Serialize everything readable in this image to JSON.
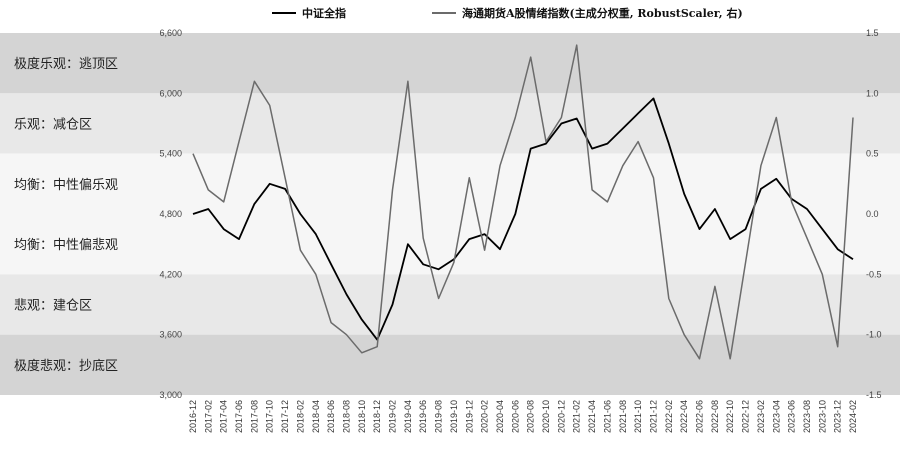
{
  "chart_data": {
    "type": "line",
    "title": "",
    "legend": {
      "placement": "top-center",
      "entries": [
        {
          "name": "中证全指",
          "color": "#000000"
        },
        {
          "name": "海通期货A股情绪指数(主成分权重, RobustScaler, 右)",
          "color": "#6b6b6b"
        }
      ]
    },
    "y_left": {
      "min": 3000,
      "max": 6600,
      "ticks": [
        "3,000",
        "3,600",
        "4,200",
        "4,800",
        "5,400",
        "6,000",
        "6,600"
      ]
    },
    "y_right": {
      "min": -1.5,
      "max": 1.5,
      "ticks": [
        "-1.5",
        "-1.0",
        "-0.5",
        "0.0",
        "0.5",
        "1.0",
        "1.5"
      ]
    },
    "x_ticks": [
      "2016-12",
      "2017-02",
      "2017-04",
      "2017-06",
      "2017-08",
      "2017-10",
      "2017-12",
      "2018-02",
      "2018-04",
      "2018-06",
      "2018-08",
      "2018-10",
      "2018-12",
      "2019-02",
      "2019-04",
      "2019-06",
      "2019-08",
      "2019-10",
      "2019-12",
      "2020-02",
      "2020-04",
      "2020-06",
      "2020-08",
      "2020-10",
      "2020-12",
      "2021-02",
      "2021-04",
      "2021-06",
      "2021-08",
      "2021-10",
      "2021-12",
      "2022-02",
      "2022-04",
      "2022-06",
      "2022-08",
      "2022-10",
      "2022-12",
      "2023-02",
      "2023-04",
      "2023-06",
      "2023-08",
      "2023-10",
      "2023-12",
      "2024-02"
    ],
    "bands": [
      {
        "label": "极度乐观：逃顶区",
        "from": 1.0,
        "to": 1.5,
        "color": "#d4d4d4"
      },
      {
        "label": "乐观：减仓区",
        "from": 0.5,
        "to": 1.0,
        "color": "#e8e8e8"
      },
      {
        "label": "均衡：中性偏乐观",
        "from": 0.0,
        "to": 0.5,
        "color": "#f6f6f6"
      },
      {
        "label": "均衡：中性偏悲观",
        "from": -0.5,
        "to": 0.0,
        "color": "#f6f6f6"
      },
      {
        "label": "悲观：建仓区",
        "from": -1.0,
        "to": -0.5,
        "color": "#e8e8e8"
      },
      {
        "label": "极度悲观：抄底区",
        "from": -1.5,
        "to": -1.0,
        "color": "#d4d4d4"
      }
    ],
    "series": [
      {
        "name": "中证全指",
        "axis": "left",
        "x": [
          "2016-12",
          "2017-02",
          "2017-04",
          "2017-06",
          "2017-08",
          "2017-10",
          "2017-12",
          "2018-02",
          "2018-04",
          "2018-06",
          "2018-08",
          "2018-10",
          "2018-12",
          "2019-02",
          "2019-04",
          "2019-06",
          "2019-08",
          "2019-10",
          "2019-12",
          "2020-02",
          "2020-04",
          "2020-06",
          "2020-08",
          "2020-10",
          "2020-12",
          "2021-02",
          "2021-04",
          "2021-06",
          "2021-08",
          "2021-10",
          "2021-12",
          "2022-02",
          "2022-04",
          "2022-06",
          "2022-08",
          "2022-10",
          "2022-12",
          "2023-02",
          "2023-04",
          "2023-06",
          "2023-08",
          "2023-10",
          "2023-12",
          "2024-02"
        ],
        "values": [
          4800,
          4850,
          4650,
          4550,
          4900,
          5100,
          5050,
          4800,
          4600,
          4300,
          4000,
          3750,
          3550,
          3900,
          4500,
          4300,
          4250,
          4350,
          4550,
          4600,
          4450,
          4800,
          5450,
          5500,
          5700,
          5750,
          5450,
          5500,
          5650,
          5800,
          5950,
          5500,
          5000,
          4650,
          4850,
          4550,
          4650,
          5050,
          5150,
          4950,
          4850,
          4650,
          4450,
          4350
        ]
      },
      {
        "name": "海通期货A股情绪指数(主成分权重, RobustScaler, 右)",
        "axis": "right",
        "x": [
          "2016-12",
          "2017-02",
          "2017-04",
          "2017-06",
          "2017-08",
          "2017-10",
          "2017-12",
          "2018-02",
          "2018-04",
          "2018-06",
          "2018-08",
          "2018-10",
          "2018-12",
          "2019-02",
          "2019-04",
          "2019-06",
          "2019-08",
          "2019-10",
          "2019-12",
          "2020-02",
          "2020-04",
          "2020-06",
          "2020-08",
          "2020-10",
          "2020-12",
          "2021-02",
          "2021-04",
          "2021-06",
          "2021-08",
          "2021-10",
          "2021-12",
          "2022-02",
          "2022-04",
          "2022-06",
          "2022-08",
          "2022-10",
          "2022-12",
          "2023-02",
          "2023-04",
          "2023-06",
          "2023-08",
          "2023-10",
          "2023-12",
          "2024-02"
        ],
        "values": [
          0.5,
          0.2,
          0.1,
          0.6,
          1.1,
          0.9,
          0.3,
          -0.3,
          -0.5,
          -0.9,
          -1.0,
          -1.15,
          -1.1,
          0.2,
          1.1,
          -0.2,
          -0.7,
          -0.4,
          0.3,
          -0.3,
          0.4,
          0.8,
          1.3,
          0.6,
          0.8,
          1.4,
          0.2,
          0.1,
          0.4,
          0.6,
          0.3,
          -0.7,
          -1.0,
          -1.2,
          -0.6,
          -1.2,
          -0.4,
          0.4,
          0.8,
          0.1,
          -0.2,
          -0.5,
          -1.1,
          0.8
        ]
      }
    ]
  }
}
